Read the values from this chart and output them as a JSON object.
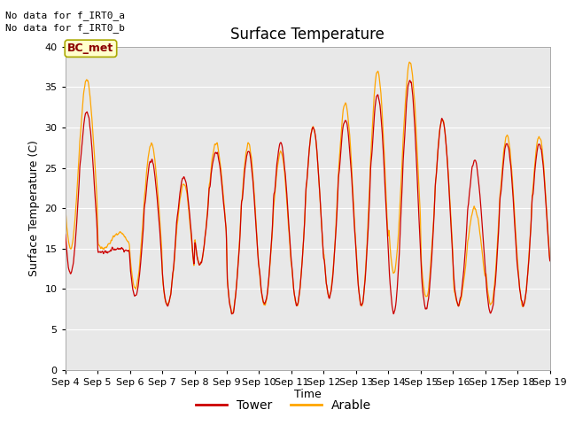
{
  "title": "Surface Temperature",
  "ylabel": "Surface Temperature (C)",
  "xlabel": "Time",
  "ylim": [
    0,
    40
  ],
  "yticks": [
    0,
    5,
    10,
    15,
    20,
    25,
    30,
    35,
    40
  ],
  "bg_color": "#e8e8e8",
  "tower_color": "#cc0000",
  "arable_color": "#ffa500",
  "text_top_left_1": "No data for f_IRT0_a",
  "text_top_left_2": "No data for f_IRT0_b",
  "box_label": "BC_met",
  "legend_tower": "Tower",
  "legend_arable": "Arable",
  "xtick_labels": [
    "Sep 4",
    "Sep 5",
    "Sep 6",
    "Sep 7",
    "Sep 8",
    "Sep 9",
    "Sep 10",
    "Sep 11",
    "Sep 12",
    "Sep 13",
    "Sep 14",
    "Sep 15",
    "Sep 16",
    "Sep 17",
    "Sep 18",
    "Sep 19"
  ],
  "n_days": 15,
  "pts_per_day": 144,
  "font_size": 9,
  "title_font_size": 12,
  "annotation_font_size": 8,
  "tower_mins": [
    12,
    14.5,
    9,
    8,
    13,
    7,
    8,
    8,
    9,
    8,
    7,
    7.5,
    8,
    7,
    8
  ],
  "tower_maxs": [
    32,
    15,
    26,
    24,
    27,
    27,
    28,
    30,
    31,
    34,
    36,
    31,
    26,
    28,
    28
  ],
  "arable_mins": [
    15,
    15,
    10,
    8,
    13,
    7,
    8,
    8,
    9,
    8,
    12,
    9,
    8,
    8,
    8
  ],
  "arable_maxs": [
    36,
    17,
    28,
    23,
    28,
    28,
    27,
    30,
    33,
    37,
    38,
    31,
    20,
    29,
    29
  ],
  "tower_noon_bump": [
    2,
    0,
    2,
    2,
    2,
    3,
    3,
    3,
    3,
    3,
    2,
    2,
    2,
    3,
    3
  ],
  "arable_noon_bump": [
    1,
    0,
    1,
    1,
    1,
    2,
    2,
    2,
    2,
    2,
    1,
    1,
    1,
    2,
    2
  ]
}
